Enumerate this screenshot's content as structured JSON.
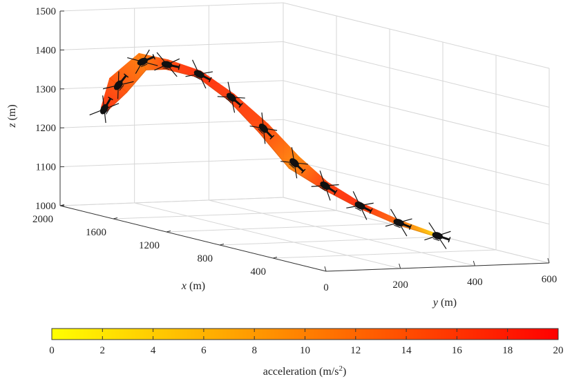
{
  "chart_data": {
    "type": "3d-ribbon",
    "xlabel": {
      "var": "x",
      "unit": " (m)"
    },
    "ylabel": {
      "var": "y",
      "unit": " (m)"
    },
    "zlabel": {
      "var": "z",
      "unit": " (m)"
    },
    "xlim": [
      0,
      2000
    ],
    "ylim": [
      0,
      600
    ],
    "zlim": [
      1000,
      1500
    ],
    "x_ticks": [
      "2000",
      "1600",
      "1200",
      "800",
      "400"
    ],
    "y_ticks": [
      "0",
      "200",
      "400",
      "600"
    ],
    "z_ticks": [
      "1000",
      "1100",
      "1200",
      "1300",
      "1400",
      "1500"
    ],
    "grid": true,
    "colorbar": {
      "label_prefix": "acceleration (m/s",
      "label_sup": "2",
      "label_suffix": ")",
      "ticks": [
        "0",
        "2",
        "4",
        "6",
        "8",
        "10",
        "12",
        "14",
        "16",
        "18",
        "20"
      ],
      "range": [
        0,
        20
      ],
      "color_low": "#ffff00",
      "color_high": "#ff0000"
    },
    "trajectory": [
      {
        "x": 1780,
        "y": 40,
        "z": 1265,
        "acc": 17
      },
      {
        "x": 1730,
        "y": 60,
        "z": 1330,
        "acc": 14
      },
      {
        "x": 1660,
        "y": 100,
        "z": 1395,
        "acc": 11
      },
      {
        "x": 1560,
        "y": 130,
        "z": 1395,
        "acc": 15
      },
      {
        "x": 1430,
        "y": 170,
        "z": 1380,
        "acc": 17
      },
      {
        "x": 1300,
        "y": 210,
        "z": 1330,
        "acc": 16
      },
      {
        "x": 1170,
        "y": 250,
        "z": 1260,
        "acc": 15
      },
      {
        "x": 1050,
        "y": 290,
        "z": 1180,
        "acc": 10
      },
      {
        "x": 930,
        "y": 330,
        "z": 1130,
        "acc": 16
      },
      {
        "x": 780,
        "y": 370,
        "z": 1090,
        "acc": 17
      },
      {
        "x": 600,
        "y": 410,
        "z": 1060,
        "acc": 12
      },
      {
        "x": 420,
        "y": 450,
        "z": 1040,
        "acc": 3
      }
    ],
    "colors": {
      "axis": "#333333",
      "grid": "#d6d6d6",
      "helicopter": "#111111"
    }
  }
}
